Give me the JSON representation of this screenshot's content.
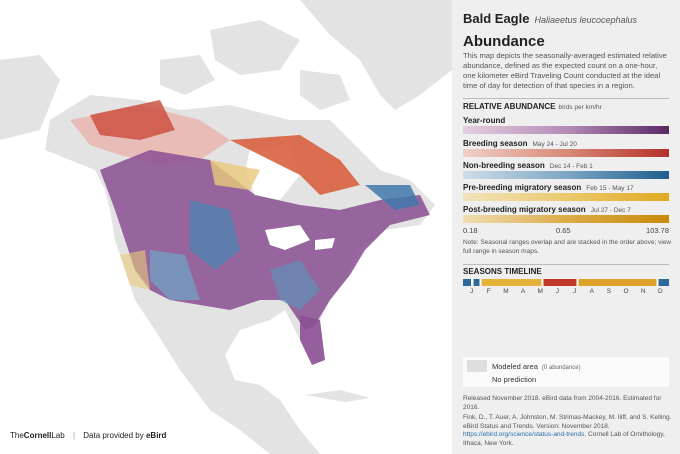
{
  "header": {
    "common_name": "Bald Eagle",
    "scientific_name": "Haliaeetus leucocephalus"
  },
  "section_title": "Abundance",
  "description": "This map depicts the seasonally-averaged estimated relative abundance, defined as the expected count on a one-hour, one kilometer eBird Traveling Count conducted at the ideal time of day for detection of that species in a region.",
  "legend": {
    "title": "RELATIVE ABUNDANCE",
    "units": "birds per km/hr",
    "seasons": [
      {
        "name": "Year-round"
      },
      {
        "name": "Breeding season",
        "dates": "May 24 - Jul 20"
      },
      {
        "name": "Non-breeding season",
        "dates": "Dec 14 - Feb 1"
      },
      {
        "name": "Pre-breeding migratory season",
        "dates": "Feb 15 - May 17"
      },
      {
        "name": "Post-breeding migratory season",
        "dates": "Jul 27 - Dec 7"
      }
    ],
    "scale": [
      0.18,
      0.65,
      103.78
    ],
    "note": "Note: Seasonal ranges overlap and are stacked in the order above; view full range in season maps."
  },
  "timeline": {
    "title": "SEASONS TIMELINE",
    "months": [
      "J",
      "F",
      "M",
      "A",
      "M",
      "J",
      "J",
      "A",
      "S",
      "O",
      "N",
      "D"
    ]
  },
  "area_legend": {
    "modeled": "Modeled area",
    "modeled_note": "(0 abundance)",
    "no_prediction": "No prediction"
  },
  "footer": {
    "release": "Released November 2018. eBird data from 2004-2016. Estimated for 2016.",
    "citation": "Fink, D., T. Auer, A. Johnston, M. Strimas-Mackey, M. Iliff, and S. Kelling. eBird Status and Trends. Version: November 2018.",
    "link": "https://ebird.org/science/status-and-trends",
    "citation_end": ". Cornell Lab of Ornithology, Ithaca, New York."
  },
  "logos": {
    "cornell": [
      "The",
      "Cornell",
      "Lab"
    ],
    "provider": "Data provided by",
    "ebird": "eBird"
  }
}
